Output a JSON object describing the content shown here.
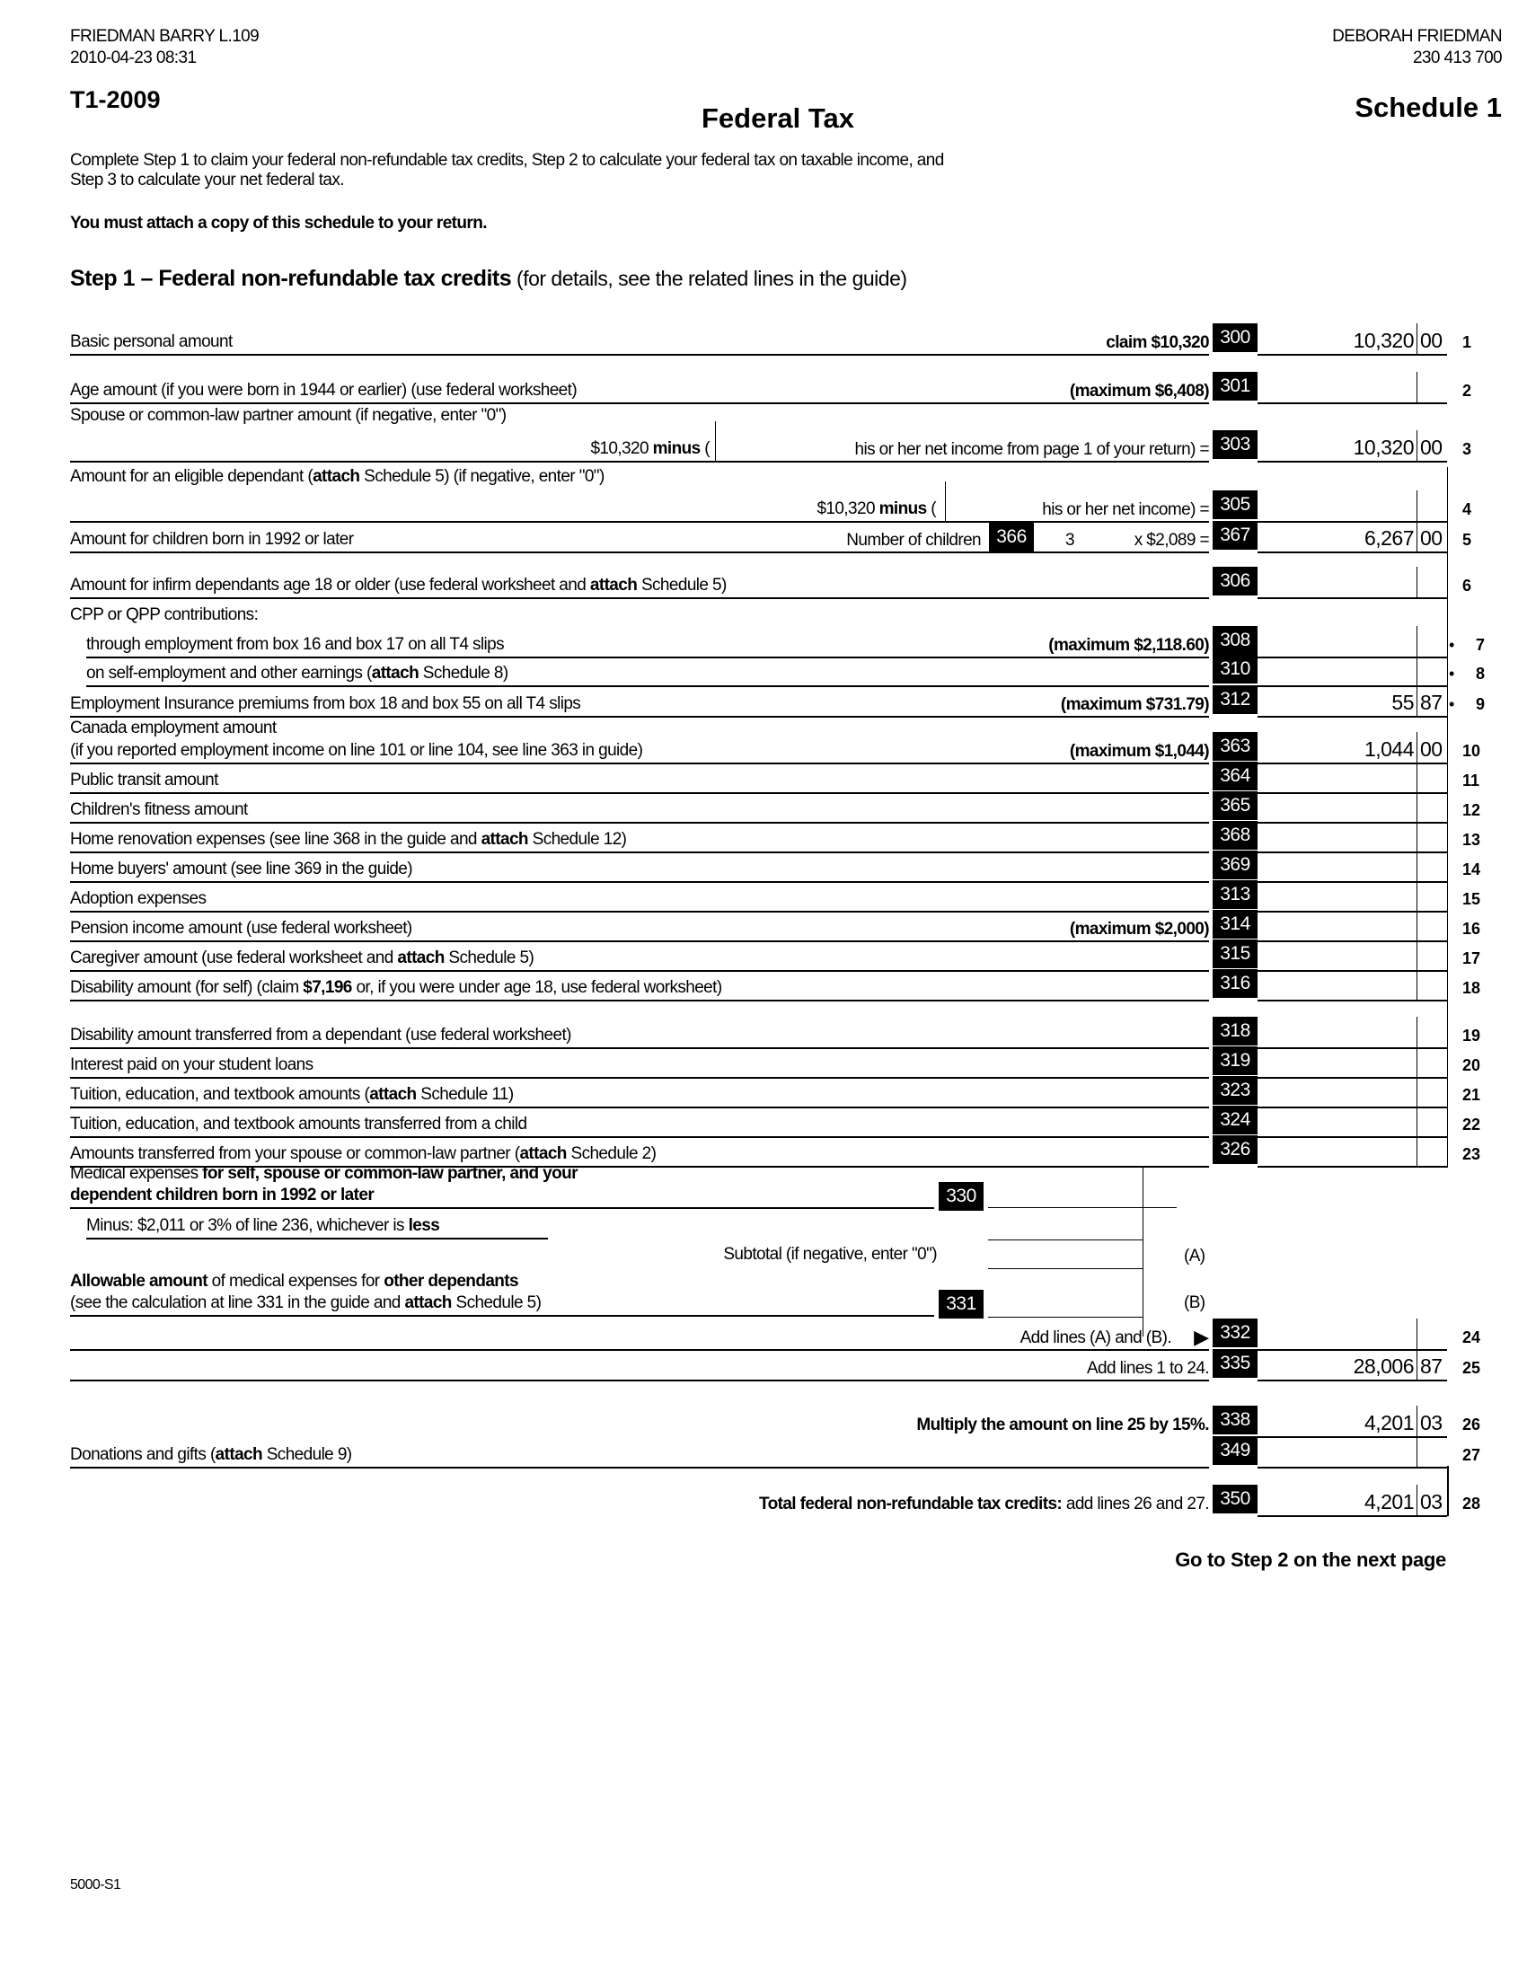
{
  "header": {
    "taxpayer": "FRIEDMAN BARRY L.109",
    "timestamp": "2010-04-23 08:31",
    "spouse_name": "DEBORAH FRIEDMAN",
    "sin": "230 413 700",
    "form_id": "T1-2009",
    "title": "Federal Tax",
    "schedule": "Schedule 1"
  },
  "intro": {
    "line1": "Complete Step 1 to claim your federal non-refundable tax credits, Step 2 to calculate your federal tax on taxable income, and",
    "line2": "Step 3 to calculate your net federal tax.",
    "attach_notice": "You must attach a copy of this schedule to your return."
  },
  "step1": {
    "title_bold": "Step 1 – Federal non-refundable tax credits",
    "title_rest": " (for details, see the related lines in the guide)"
  },
  "rows": [
    {
      "id": "r1",
      "label": [
        {
          "t": "Basic personal amount"
        }
      ],
      "note": [
        {
          "t": "claim $10,320",
          "b": true
        }
      ],
      "code": "300",
      "dollars": "10,320",
      "cents": "00",
      "line": "1"
    },
    {
      "id": "r2",
      "label": [
        {
          "t": "Age amount (if you were born in 1944 or earlier) (use federal worksheet)"
        }
      ],
      "note": [
        {
          "t": "(maximum $6,408)",
          "b": true
        }
      ],
      "code": "301",
      "line": "2"
    },
    {
      "id": "h3",
      "label": [
        {
          "t": "Spouse or common-law partner amount (if negative, enter \"0\")"
        }
      ],
      "nounder": true
    },
    {
      "id": "r3",
      "mid": [
        {
          "t": "$10,320 "
        },
        {
          "t": "minus",
          "b": true
        },
        {
          "t": " ("
        }
      ],
      "note": [
        {
          "t": "his or her net income from page 1 of your return) ="
        }
      ],
      "code": "303",
      "dollars": "10,320",
      "cents": "00",
      "line": "3"
    },
    {
      "id": "h4",
      "label": [
        {
          "t": "Amount for an eligible dependant ("
        },
        {
          "t": "attach",
          "b": true
        },
        {
          "t": " Schedule 5) (if negative, enter \"0\")"
        }
      ],
      "nounder": true
    },
    {
      "id": "r4",
      "mid": [
        {
          "t": "$10,320 "
        },
        {
          "t": "minus",
          "b": true
        },
        {
          "t": " ("
        }
      ],
      "note": [
        {
          "t": "his or her net income) ="
        }
      ],
      "code": "305",
      "line": "4"
    },
    {
      "id": "r5",
      "label": [
        {
          "t": "Amount for children born in 1992 or later"
        }
      ],
      "children": {
        "label": "Number of children",
        "code": "366",
        "count": "3",
        "mult": "x $2,089 ="
      },
      "code": "367",
      "dollars": "6,267",
      "cents": "00",
      "line": "5"
    },
    {
      "id": "r6",
      "label": [
        {
          "t": "Amount for infirm dependants age 18 or older (use federal worksheet and "
        },
        {
          "t": "attach",
          "b": true
        },
        {
          "t": " Schedule 5)"
        }
      ],
      "code": "306",
      "line": "6"
    },
    {
      "id": "h7",
      "label": [
        {
          "t": "CPP or QPP contributions:"
        }
      ],
      "nounder": true
    },
    {
      "id": "r7",
      "indent": true,
      "label": [
        {
          "t": "through employment from box 16 and box 17 on all T4 slips"
        }
      ],
      "note": [
        {
          "t": "(maximum $2,118.60)",
          "b": true
        }
      ],
      "code": "308",
      "bullet": "•",
      "line": "7"
    },
    {
      "id": "r8",
      "indent": true,
      "label": [
        {
          "t": "on self-employment and other earnings ("
        },
        {
          "t": "attach",
          "b": true
        },
        {
          "t": " Schedule 8)"
        }
      ],
      "code": "310",
      "bullet": "•",
      "line": "8"
    },
    {
      "id": "r9",
      "label": [
        {
          "t": "Employment Insurance premiums from box 18 and box 55 on all T4 slips"
        }
      ],
      "note": [
        {
          "t": "(maximum $731.79)",
          "b": true
        }
      ],
      "code": "312",
      "dollars": "55",
      "cents": "87",
      "bullet": "•",
      "line": "9"
    },
    {
      "id": "h10",
      "label": [
        {
          "t": "Canada employment amount"
        }
      ],
      "nounder": true
    },
    {
      "id": "r10",
      "label": [
        {
          "t": "(if you reported employment income on line 101 or line 104, see line 363 in guide)"
        }
      ],
      "note": [
        {
          "t": "(maximum $1,044)",
          "b": true
        }
      ],
      "code": "363",
      "dollars": "1,044",
      "cents": "00",
      "line": "10"
    },
    {
      "id": "r11",
      "label": [
        {
          "t": "Public transit amount"
        }
      ],
      "code": "364",
      "line": "11"
    },
    {
      "id": "r12",
      "label": [
        {
          "t": "Children's fitness amount"
        }
      ],
      "code": "365",
      "line": "12"
    },
    {
      "id": "r13",
      "label": [
        {
          "t": "Home renovation expenses (see line 368 in the guide and "
        },
        {
          "t": "attach",
          "b": true
        },
        {
          "t": " Schedule 12)"
        }
      ],
      "code": "368",
      "line": "13"
    },
    {
      "id": "r14",
      "label": [
        {
          "t": "Home buyers' amount (see line 369 in the guide)"
        }
      ],
      "code": "369",
      "line": "14"
    },
    {
      "id": "r15",
      "label": [
        {
          "t": "Adoption expenses"
        }
      ],
      "code": "313",
      "line": "15"
    },
    {
      "id": "r16",
      "label": [
        {
          "t": "Pension income amount (use federal worksheet)"
        }
      ],
      "note": [
        {
          "t": "(maximum $2,000)",
          "b": true
        }
      ],
      "code": "314",
      "line": "16"
    },
    {
      "id": "r17",
      "label": [
        {
          "t": "Caregiver amount (use federal worksheet and "
        },
        {
          "t": "attach",
          "b": true
        },
        {
          "t": " Schedule 5)"
        }
      ],
      "code": "315",
      "line": "17"
    },
    {
      "id": "r18",
      "label": [
        {
          "t": "Disability amount (for self) (claim "
        },
        {
          "t": "$7,196",
          "b": true
        },
        {
          "t": " or, if you were under age 18, use federal worksheet)"
        }
      ],
      "code": "316",
      "line": "18"
    },
    {
      "id": "r19",
      "label": [
        {
          "t": "Disability amount transferred from a dependant (use federal worksheet)"
        }
      ],
      "code": "318",
      "line": "19"
    },
    {
      "id": "r20",
      "label": [
        {
          "t": "Interest paid on your student loans"
        }
      ],
      "code": "319",
      "line": "20"
    },
    {
      "id": "r21",
      "label": [
        {
          "t": "Tuition, education, and textbook amounts ("
        },
        {
          "t": "attach",
          "b": true
        },
        {
          "t": " Schedule 11)"
        }
      ],
      "code": "323",
      "line": "21"
    },
    {
      "id": "r22",
      "label": [
        {
          "t": "Tuition, education, and textbook amounts transferred from a child"
        }
      ],
      "code": "324",
      "line": "22"
    },
    {
      "id": "r23",
      "label": [
        {
          "t": "Amounts transferred from your spouse or common-law partner ("
        },
        {
          "t": "attach",
          "b": true
        },
        {
          "t": " Schedule 2)"
        }
      ],
      "code": "326",
      "line": "23"
    },
    {
      "id": "r24",
      "note": [
        {
          "t": "Add lines (A) and (B)."
        }
      ],
      "arrow": "▶",
      "code": "332",
      "line": "24"
    },
    {
      "id": "r25",
      "note": [
        {
          "t": "Add lines 1 to 24."
        }
      ],
      "code": "335",
      "dollars": "28,006",
      "cents": "87",
      "line": "25"
    },
    {
      "id": "r26",
      "nounder": true,
      "note": [
        {
          "t": "Multiply the amount on line 25 by 15%.",
          "b": true
        }
      ],
      "code": "338",
      "dollars": "4,201",
      "cents": "03",
      "line": "26"
    },
    {
      "id": "r27",
      "label": [
        {
          "t": "Donations and gifts ("
        },
        {
          "t": "attach",
          "b": true
        },
        {
          "t": " Schedule 9)"
        }
      ],
      "code": "349",
      "line": "27"
    },
    {
      "id": "r28",
      "nounder": true,
      "note": [
        {
          "t": "Total federal non-refundable tax credits:",
          "b": true
        },
        {
          "t": " add lines 26 and 27."
        }
      ],
      "code": "350",
      "dollars": "4,201",
      "cents": "03",
      "line": "28"
    }
  ],
  "medical": {
    "line1_a": "Medical expenses ",
    "line1_b": "for self, spouse or common-law partner, and your",
    "line2": "dependent children born in 1992 or later",
    "code_a": "330",
    "minus_a": "Minus: $2,011 or 3% of line 236, whichever is ",
    "minus_b": "less",
    "subtotal": "Subtotal (if negative, enter \"0\")",
    "mark_a": "(A)",
    "allow_a": "Allowable amount",
    "allow_b": " of medical expenses for ",
    "allow_c": "other dependants",
    "allow_line2_a": "(see the calculation at line 331 in the guide and ",
    "allow_line2_b": "attach",
    "allow_line2_c": " Schedule 5)",
    "code_b": "331",
    "mark_b": "(B)"
  },
  "footer": {
    "next": "Go to Step 2 on the next page",
    "form_number": "5000-S1"
  }
}
